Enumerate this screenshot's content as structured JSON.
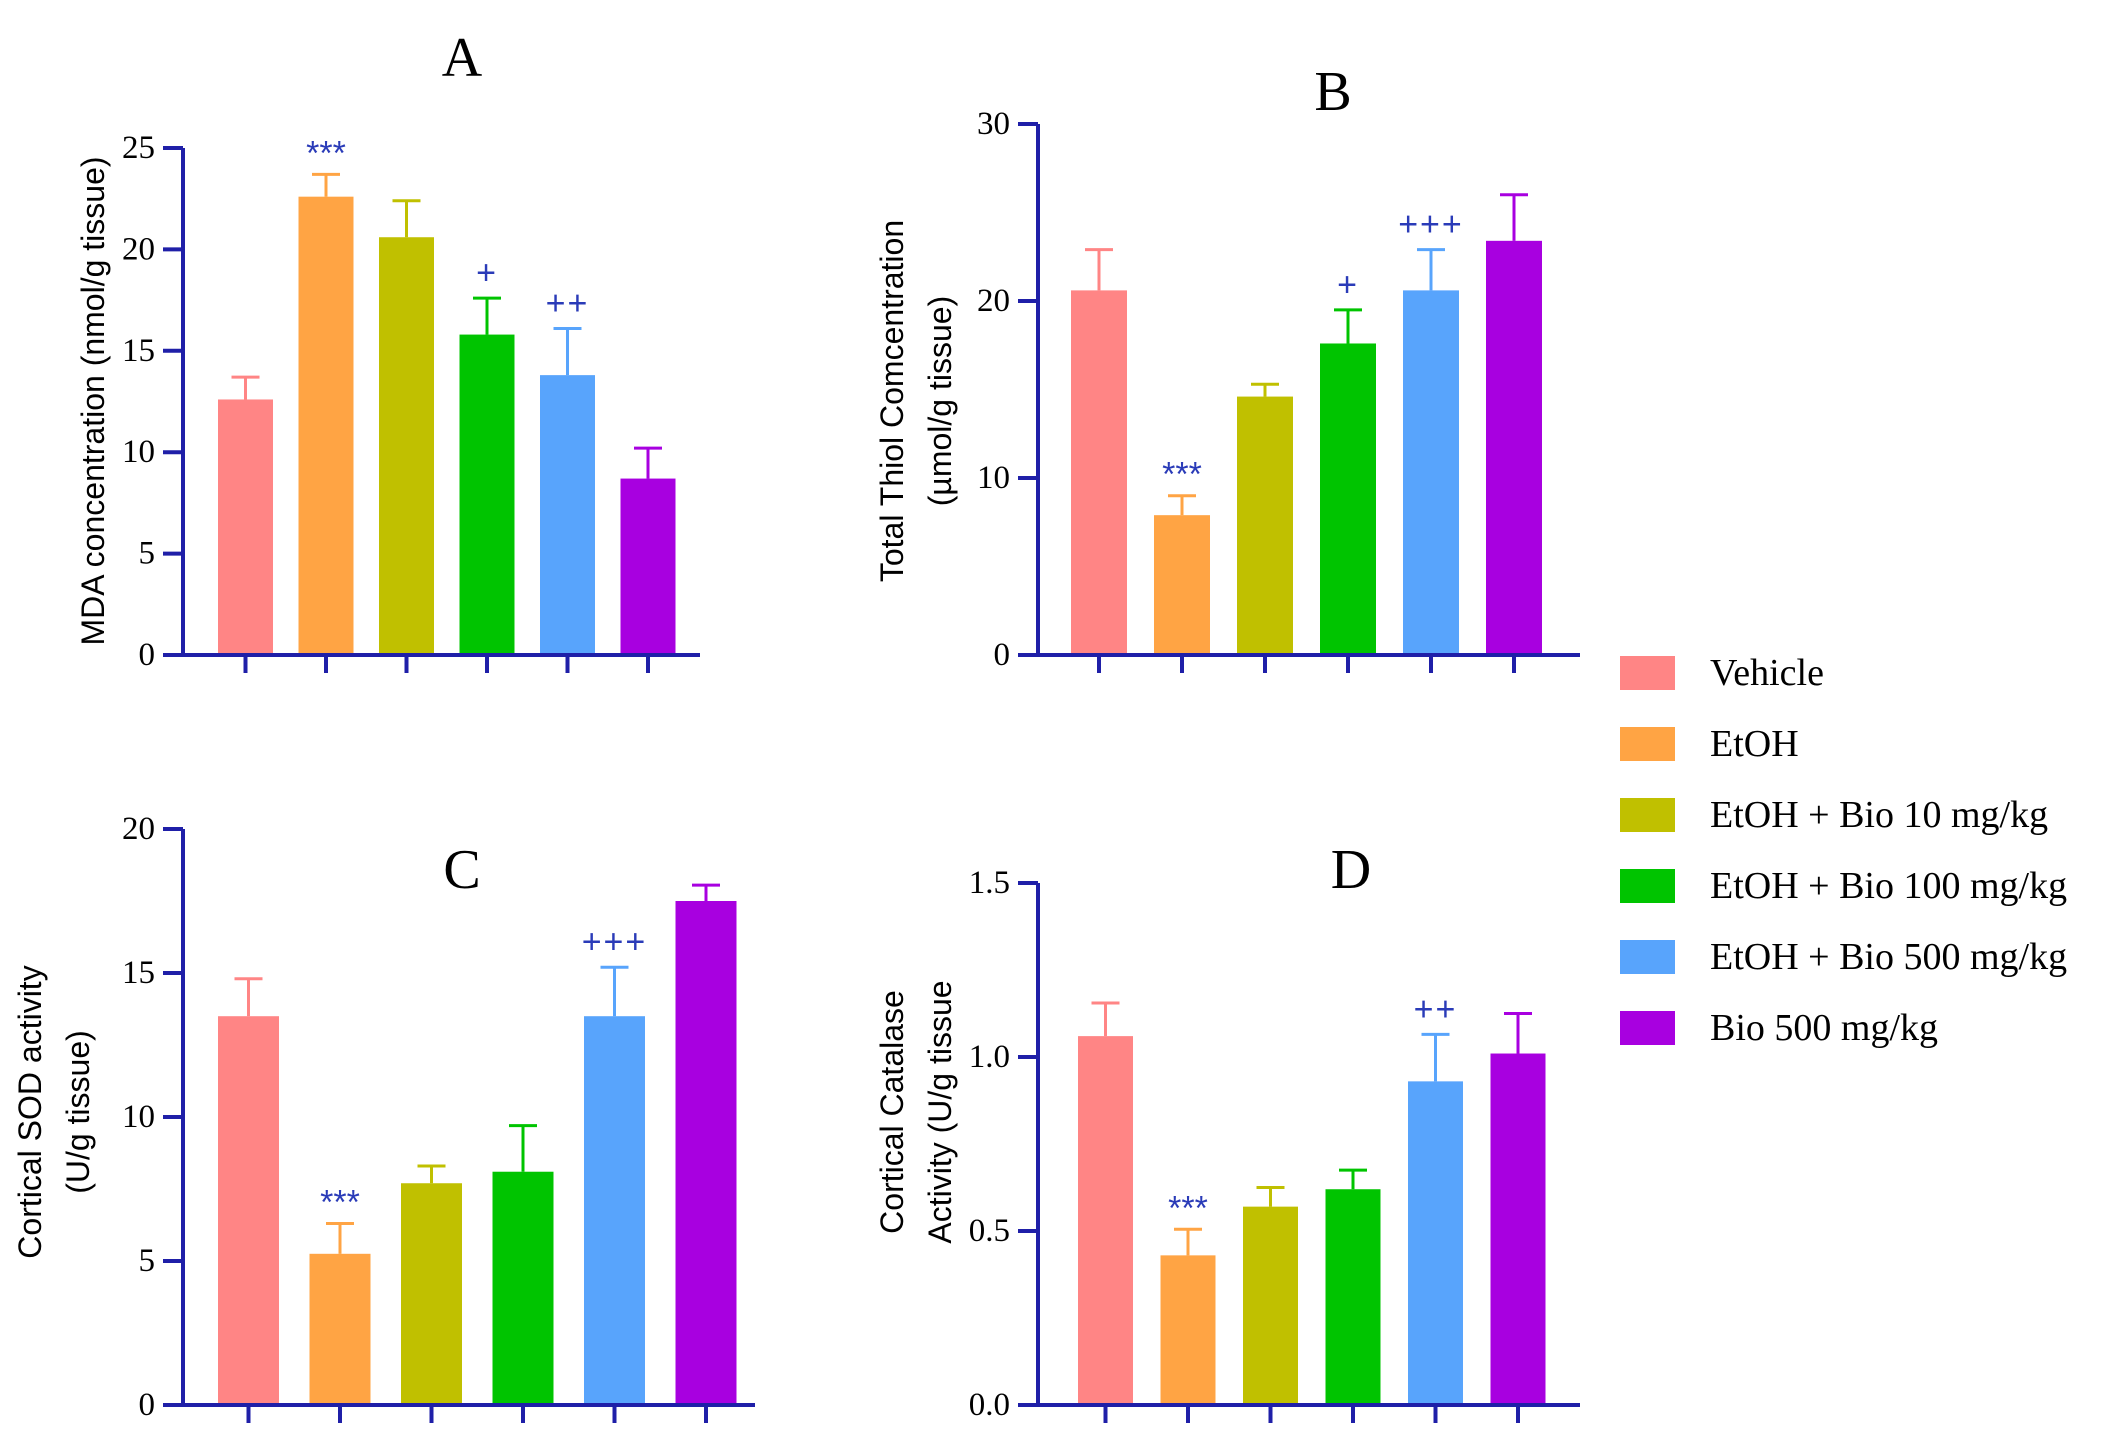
{
  "legend": {
    "items": [
      {
        "label": "Vehicle",
        "color": "#ff8585"
      },
      {
        "label": "EtOH",
        "color": "#ffa444"
      },
      {
        "label": "EtOH + Bio 10 mg/kg",
        "color": "#c0c000"
      },
      {
        "label": "EtOH + Bio 100 mg/kg",
        "color": "#00c400"
      },
      {
        "label": "EtOH + Bio 500 mg/kg",
        "color": "#58a4fc"
      },
      {
        "label": "Bio 500 mg/kg",
        "color": "#a800e0"
      }
    ]
  },
  "axis_color": "#1f1fa8",
  "chart_data": [
    {
      "type": "bar",
      "panel": "A",
      "ylabel": "MDA concentration (nmol/g tissue)",
      "ylim": [
        0,
        25
      ],
      "yticks": [
        "0",
        "5",
        "10",
        "15",
        "20",
        "25"
      ],
      "categories": [
        "Vehicle",
        "EtOH",
        "EtOH + Bio 10 mg/kg",
        "EtOH + Bio 100 mg/kg",
        "EtOH + Bio 500 mg/kg",
        "Bio 500 mg/kg"
      ],
      "values": [
        12.6,
        22.6,
        20.6,
        15.8,
        13.8,
        8.7
      ],
      "errors": [
        1.1,
        1.1,
        1.8,
        1.8,
        2.3,
        1.5
      ],
      "annotations": [
        "",
        "***",
        "",
        "+",
        "++",
        ""
      ]
    },
    {
      "type": "bar",
      "panel": "B",
      "ylabel": [
        "Total Thiol Comcentration",
        "(µmol/g tissue)"
      ],
      "ylim": [
        0,
        30
      ],
      "yticks": [
        "0",
        "10",
        "20",
        "30"
      ],
      "categories": [
        "Vehicle",
        "EtOH",
        "EtOH + Bio 10 mg/kg",
        "EtOH + Bio 100 mg/kg",
        "EtOH + Bio 500 mg/kg",
        "Bio 500 mg/kg"
      ],
      "values": [
        20.6,
        7.9,
        14.6,
        17.6,
        20.6,
        23.4
      ],
      "errors": [
        2.3,
        1.1,
        0.7,
        1.9,
        2.3,
        2.6
      ],
      "annotations": [
        "",
        "***",
        "",
        "+",
        "+++",
        ""
      ]
    },
    {
      "type": "bar",
      "panel": "C",
      "ylabel": [
        "Cortical SOD activity",
        "(U/g tissue)"
      ],
      "ylim": [
        0,
        20
      ],
      "yticks": [
        "0",
        "5",
        "10",
        "15",
        "20"
      ],
      "categories": [
        "Vehicle",
        "EtOH",
        "EtOH + Bio 10 mg/kg",
        "EtOH + Bio 100 mg/kg",
        "EtOH + Bio 500 mg/kg",
        "Bio 500 mg/kg"
      ],
      "values": [
        13.5,
        5.25,
        7.7,
        8.1,
        13.5,
        17.5
      ],
      "errors": [
        1.3,
        1.05,
        0.6,
        1.6,
        1.7,
        0.55
      ],
      "annotations": [
        "",
        "***",
        "",
        "",
        "+++",
        ""
      ]
    },
    {
      "type": "bar",
      "panel": "D",
      "ylabel": [
        "Cortical Catalase",
        "Activity (U/g tissue"
      ],
      "ylim": [
        0,
        1.5
      ],
      "yticks": [
        "0.0",
        "0.5",
        "1.0",
        "1.5"
      ],
      "categories": [
        "Vehicle",
        "EtOH",
        "EtOH + Bio 10 mg/kg",
        "EtOH + Bio 100 mg/kg",
        "EtOH + Bio 500 mg/kg",
        "Bio 500 mg/kg"
      ],
      "values": [
        1.06,
        0.43,
        0.57,
        0.62,
        0.93,
        1.01
      ],
      "errors": [
        0.095,
        0.075,
        0.055,
        0.055,
        0.135,
        0.115
      ],
      "annotations": [
        "",
        "***",
        "",
        "",
        "++",
        ""
      ]
    }
  ]
}
